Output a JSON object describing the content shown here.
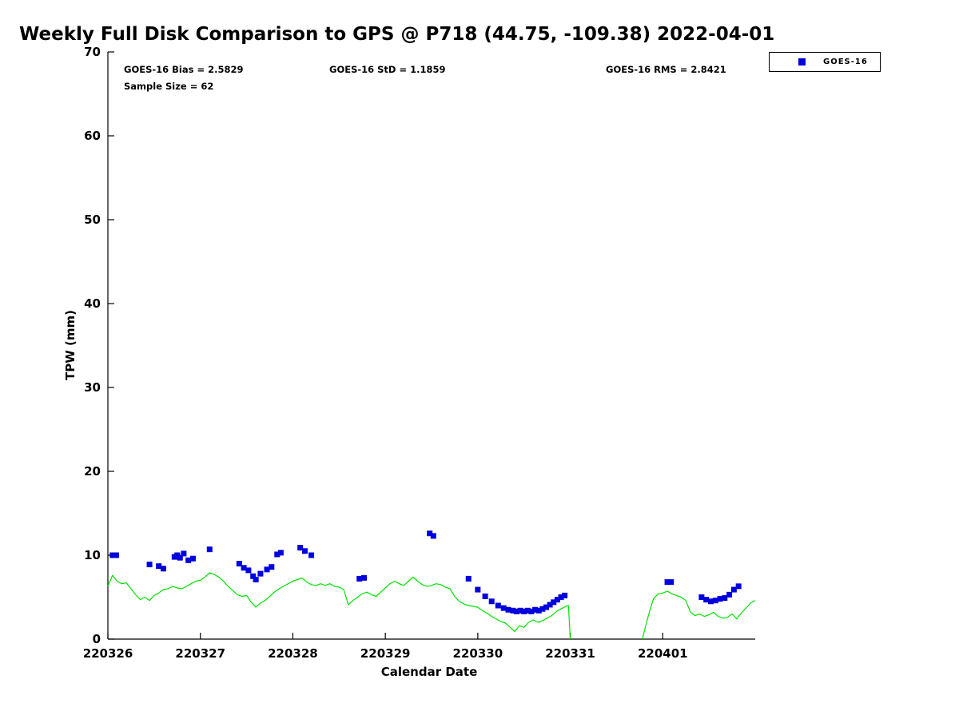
{
  "title": "Weekly Full Disk Comparison to GPS @ P718 (44.75, -109.38) 2022-04-01",
  "annotations": {
    "bias": "GOES-16 Bias = 2.5829",
    "std": "GOES-16 StD = 1.1859",
    "rms": "GOES-16 RMS = 2.8421",
    "sample_size": "Sample Size = 62"
  },
  "legend": {
    "items": [
      {
        "label": "GOES-16",
        "marker_color": "#0000dd",
        "marker": "filled-square"
      }
    ]
  },
  "chart_data": {
    "type": "scatter",
    "title": "Weekly Full Disk Comparison to GPS @ P718 (44.75, -109.38) 2022-04-01",
    "xlabel": "Calendar Date",
    "ylabel": "TPW (mm)",
    "ylim": [
      0,
      70
    ],
    "y_ticks": [
      0,
      10,
      20,
      30,
      40,
      50,
      60,
      70
    ],
    "x_domain": [
      0,
      7
    ],
    "x_unit": "days since 220326",
    "x_tick_positions": [
      0,
      1,
      2,
      3,
      4,
      5,
      6
    ],
    "x_tick_labels": [
      "220326",
      "220327",
      "220328",
      "220329",
      "220330",
      "220331",
      "220401"
    ],
    "grid": false,
    "legend_position": "top-right-outside",
    "series": [
      {
        "name": "GOES-16",
        "type": "scatter",
        "color": "#0000dd",
        "marker": "square",
        "points": [
          [
            0.05,
            10.0
          ],
          [
            0.09,
            10.0
          ],
          [
            0.45,
            8.9
          ],
          [
            0.55,
            8.7
          ],
          [
            0.6,
            8.4
          ],
          [
            0.72,
            9.8
          ],
          [
            0.75,
            10.0
          ],
          [
            0.78,
            9.7
          ],
          [
            0.82,
            10.2
          ],
          [
            0.87,
            9.4
          ],
          [
            0.92,
            9.6
          ],
          [
            1.1,
            10.7
          ],
          [
            1.42,
            9.0
          ],
          [
            1.47,
            8.5
          ],
          [
            1.52,
            8.2
          ],
          [
            1.57,
            7.5
          ],
          [
            1.6,
            7.1
          ],
          [
            1.65,
            7.8
          ],
          [
            1.72,
            8.3
          ],
          [
            1.77,
            8.6
          ],
          [
            1.83,
            10.1
          ],
          [
            1.87,
            10.3
          ],
          [
            2.08,
            10.9
          ],
          [
            2.13,
            10.5
          ],
          [
            2.2,
            10.0
          ],
          [
            2.72,
            7.2
          ],
          [
            2.77,
            7.3
          ],
          [
            3.48,
            12.6
          ],
          [
            3.52,
            12.3
          ],
          [
            3.9,
            7.2
          ],
          [
            4.0,
            5.9
          ],
          [
            4.08,
            5.1
          ],
          [
            4.15,
            4.5
          ],
          [
            4.22,
            4.0
          ],
          [
            4.28,
            3.7
          ],
          [
            4.33,
            3.5
          ],
          [
            4.38,
            3.4
          ],
          [
            4.42,
            3.3
          ],
          [
            4.46,
            3.4
          ],
          [
            4.5,
            3.3
          ],
          [
            4.54,
            3.4
          ],
          [
            4.58,
            3.3
          ],
          [
            4.62,
            3.5
          ],
          [
            4.66,
            3.4
          ],
          [
            4.7,
            3.6
          ],
          [
            4.74,
            3.8
          ],
          [
            4.78,
            4.1
          ],
          [
            4.82,
            4.4
          ],
          [
            4.86,
            4.7
          ],
          [
            4.9,
            5.0
          ],
          [
            4.94,
            5.2
          ],
          [
            6.05,
            6.8
          ],
          [
            6.09,
            6.8
          ],
          [
            6.42,
            5.0
          ],
          [
            6.47,
            4.7
          ],
          [
            6.52,
            4.5
          ],
          [
            6.57,
            4.6
          ],
          [
            6.62,
            4.8
          ],
          [
            6.67,
            4.9
          ],
          [
            6.72,
            5.3
          ],
          [
            6.77,
            5.9
          ],
          [
            6.82,
            6.3
          ]
        ]
      },
      {
        "name": "GPS",
        "type": "line",
        "color": "#00e400",
        "segments": [
          [
            [
              0.0,
              6.3
            ],
            [
              0.05,
              7.6
            ],
            [
              0.1,
              6.9
            ],
            [
              0.15,
              6.6
            ],
            [
              0.2,
              6.7
            ],
            [
              0.25,
              6.0
            ],
            [
              0.3,
              5.3
            ],
            [
              0.35,
              4.7
            ],
            [
              0.4,
              5.0
            ],
            [
              0.45,
              4.6
            ],
            [
              0.5,
              5.2
            ],
            [
              0.55,
              5.5
            ],
            [
              0.6,
              5.9
            ],
            [
              0.65,
              6.0
            ],
            [
              0.7,
              6.3
            ],
            [
              0.75,
              6.1
            ],
            [
              0.8,
              6.0
            ],
            [
              0.85,
              6.3
            ],
            [
              0.9,
              6.6
            ],
            [
              0.95,
              6.9
            ],
            [
              1.0,
              7.0
            ],
            [
              1.05,
              7.4
            ],
            [
              1.1,
              7.9
            ],
            [
              1.15,
              7.7
            ],
            [
              1.2,
              7.4
            ],
            [
              1.25,
              6.9
            ],
            [
              1.3,
              6.3
            ],
            [
              1.35,
              5.8
            ],
            [
              1.4,
              5.3
            ],
            [
              1.45,
              5.1
            ],
            [
              1.5,
              5.2
            ],
            [
              1.55,
              4.4
            ],
            [
              1.6,
              3.8
            ],
            [
              1.65,
              4.3
            ],
            [
              1.7,
              4.6
            ],
            [
              1.75,
              5.1
            ],
            [
              1.8,
              5.6
            ],
            [
              1.85,
              6.0
            ],
            [
              1.9,
              6.3
            ],
            [
              1.95,
              6.6
            ],
            [
              2.0,
              6.9
            ],
            [
              2.05,
              7.1
            ],
            [
              2.1,
              7.3
            ],
            [
              2.15,
              6.8
            ],
            [
              2.2,
              6.5
            ],
            [
              2.25,
              6.4
            ],
            [
              2.3,
              6.6
            ],
            [
              2.35,
              6.4
            ],
            [
              2.4,
              6.6
            ],
            [
              2.45,
              6.3
            ],
            [
              2.5,
              6.2
            ],
            [
              2.55,
              5.9
            ],
            [
              2.6,
              4.1
            ],
            [
              2.65,
              4.6
            ],
            [
              2.7,
              5.0
            ],
            [
              2.75,
              5.4
            ],
            [
              2.8,
              5.6
            ],
            [
              2.85,
              5.3
            ],
            [
              2.9,
              5.1
            ],
            [
              2.95,
              5.6
            ],
            [
              3.0,
              6.1
            ],
            [
              3.05,
              6.6
            ],
            [
              3.1,
              6.9
            ],
            [
              3.15,
              6.6
            ],
            [
              3.2,
              6.4
            ],
            [
              3.25,
              6.9
            ],
            [
              3.3,
              7.4
            ],
            [
              3.35,
              6.9
            ],
            [
              3.4,
              6.5
            ],
            [
              3.45,
              6.3
            ],
            [
              3.5,
              6.4
            ],
            [
              3.55,
              6.6
            ],
            [
              3.6,
              6.5
            ],
            [
              3.65,
              6.2
            ],
            [
              3.7,
              6.0
            ],
            [
              3.75,
              5.1
            ],
            [
              3.8,
              4.5
            ],
            [
              3.85,
              4.2
            ],
            [
              3.9,
              4.0
            ],
            [
              3.95,
              3.9
            ],
            [
              4.0,
              3.8
            ],
            [
              4.05,
              3.4
            ],
            [
              4.1,
              3.1
            ],
            [
              4.15,
              2.7
            ],
            [
              4.2,
              2.4
            ],
            [
              4.25,
              2.1
            ],
            [
              4.3,
              1.9
            ],
            [
              4.35,
              1.4
            ],
            [
              4.4,
              0.9
            ],
            [
              4.45,
              1.6
            ],
            [
              4.5,
              1.4
            ],
            [
              4.55,
              2.0
            ],
            [
              4.6,
              2.3
            ],
            [
              4.65,
              2.0
            ],
            [
              4.7,
              2.2
            ],
            [
              4.75,
              2.5
            ],
            [
              4.8,
              2.8
            ],
            [
              4.85,
              3.3
            ],
            [
              4.9,
              3.6
            ],
            [
              4.95,
              3.9
            ],
            [
              4.98,
              4.0
            ],
            [
              5.0,
              0.0
            ]
          ],
          [
            [
              5.78,
              0.0
            ],
            [
              5.82,
              1.8
            ],
            [
              5.86,
              3.4
            ],
            [
              5.9,
              4.8
            ],
            [
              5.95,
              5.4
            ],
            [
              6.0,
              5.5
            ],
            [
              6.05,
              5.7
            ],
            [
              6.1,
              5.4
            ],
            [
              6.15,
              5.2
            ],
            [
              6.2,
              5.0
            ],
            [
              6.25,
              4.6
            ],
            [
              6.3,
              3.2
            ],
            [
              6.35,
              2.8
            ],
            [
              6.4,
              3.0
            ],
            [
              6.45,
              2.7
            ],
            [
              6.5,
              2.9
            ],
            [
              6.55,
              3.2
            ],
            [
              6.6,
              2.7
            ],
            [
              6.65,
              2.5
            ],
            [
              6.7,
              2.6
            ],
            [
              6.75,
              3.0
            ],
            [
              6.8,
              2.4
            ],
            [
              6.85,
              3.1
            ],
            [
              6.9,
              3.7
            ],
            [
              6.95,
              4.3
            ],
            [
              7.0,
              4.6
            ]
          ]
        ]
      }
    ]
  }
}
